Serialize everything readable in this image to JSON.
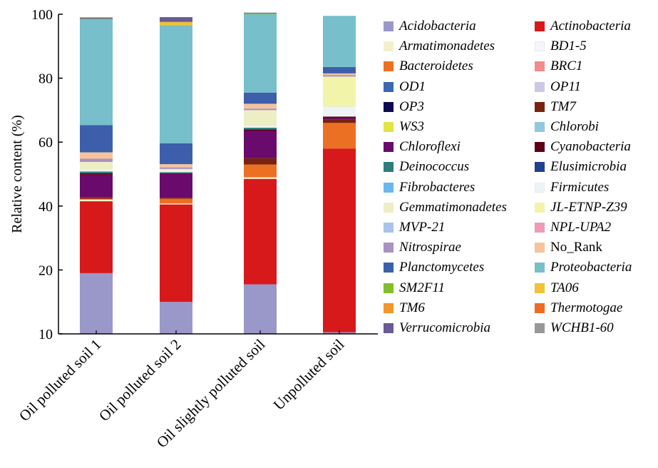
{
  "chart_data": {
    "type": "bar",
    "stacked": true,
    "ylabel": "Relative content (%)",
    "xlabel": "",
    "yticks": [
      "10",
      "20",
      "40",
      "60",
      "80",
      "100"
    ],
    "ylim": [
      0,
      100
    ],
    "grid": false,
    "legend_position": "right",
    "categories": [
      "Oil polluted soil 1",
      "Oil polluted soil 2",
      "Oil slightly polluted soil",
      "Unpolluted soil"
    ],
    "series": [
      {
        "name": "Acidobacteria",
        "color": "#9a98c9",
        "values": [
          19,
          10,
          15.5,
          0.5
        ]
      },
      {
        "name": "Actinobacteria",
        "color": "#d7191c",
        "values": [
          22.5,
          30.5,
          33,
          57.5
        ]
      },
      {
        "name": "Armatimonadetes",
        "color": "#f3f1c9",
        "values": [
          0.5,
          0.3,
          0.5,
          0
        ]
      },
      {
        "name": "BD1-5",
        "color": "#f4f6fa",
        "values": [
          0,
          0,
          0,
          0
        ]
      },
      {
        "name": "Bacteroidetes",
        "color": "#ec7024",
        "values": [
          0.3,
          1.5,
          4,
          8
        ]
      },
      {
        "name": "BRC1",
        "color": "#f08c8c",
        "values": [
          0,
          0,
          0,
          0
        ]
      },
      {
        "name": "OD1",
        "color": "#3b67b4",
        "values": [
          0,
          0,
          0,
          0
        ]
      },
      {
        "name": "OP11",
        "color": "#cfc8e4",
        "values": [
          0,
          0,
          0,
          0
        ]
      },
      {
        "name": "OP3",
        "color": "#0c0a52",
        "values": [
          0,
          0,
          0,
          0
        ]
      },
      {
        "name": "TM7",
        "color": "#7a2210",
        "values": [
          0.5,
          0.3,
          2,
          1
        ]
      },
      {
        "name": "WS3",
        "color": "#e2e344",
        "values": [
          0,
          0,
          0,
          0
        ]
      },
      {
        "name": "Chlorobi",
        "color": "#8fc8df",
        "values": [
          0,
          0,
          0,
          0
        ]
      },
      {
        "name": "Chloroflexi",
        "color": "#6a0a6c",
        "values": [
          7,
          7.5,
          8.5,
          0.5
        ]
      },
      {
        "name": "Cyanobacteria",
        "color": "#5c0016",
        "values": [
          0.5,
          0.2,
          0.5,
          0.5
        ]
      },
      {
        "name": "Deinococcus",
        "color": "#2d7d7d",
        "values": [
          0.5,
          0.3,
          0.5,
          0
        ]
      },
      {
        "name": "Elusimicrobia",
        "color": "#1f3f8f",
        "values": [
          0,
          0,
          0,
          0
        ]
      },
      {
        "name": "Fibrobacteres",
        "color": "#6ab8ee",
        "values": [
          0,
          0,
          0,
          0
        ]
      },
      {
        "name": "Firmicutes",
        "color": "#eef4f6",
        "values": [
          0.5,
          0.5,
          0.5,
          3
        ]
      },
      {
        "name": "Gemmatimonadetes",
        "color": "#eeeec4",
        "values": [
          2.5,
          0.5,
          5,
          0.5
        ]
      },
      {
        "name": "JL-ETNP-Z39",
        "color": "#f2f4aa",
        "values": [
          0,
          0,
          0,
          9
        ]
      },
      {
        "name": "MVP-21",
        "color": "#a9c3ea",
        "values": [
          0,
          0,
          0,
          0
        ]
      },
      {
        "name": "NPL-UPA2",
        "color": "#ee9ab8",
        "values": [
          0,
          0,
          0,
          0
        ]
      },
      {
        "name": "Nitrospirae",
        "color": "#a992c2",
        "values": [
          1,
          0.5,
          0.5,
          0.5
        ]
      },
      {
        "name": "No_Rank",
        "color": "#f6c39c",
        "values": [
          2,
          1,
          1.5,
          0.5
        ]
      },
      {
        "name": "Planctomycetes",
        "color": "#3d5fab",
        "values": [
          8.5,
          6.5,
          3.5,
          2
        ]
      },
      {
        "name": "Proteobacteria",
        "color": "#76bfcb",
        "values": [
          33,
          37,
          24.5,
          16
        ]
      },
      {
        "name": "SM2F11",
        "color": "#83bd29",
        "values": [
          0.3,
          0,
          0.3,
          0
        ]
      },
      {
        "name": "TA06",
        "color": "#f1c232",
        "values": [
          0,
          1,
          0,
          0
        ]
      },
      {
        "name": "TM6",
        "color": "#f29729",
        "values": [
          0,
          0,
          0,
          0
        ]
      },
      {
        "name": "Thermotogae",
        "color": "#ef6c23",
        "values": [
          0,
          0,
          0,
          0
        ]
      },
      {
        "name": "Verrucomicrobia",
        "color": "#6a5a96",
        "values": [
          0.4,
          1.5,
          0.2,
          0
        ]
      },
      {
        "name": "WCHB1-60",
        "color": "#989898",
        "values": [
          0,
          0,
          0,
          0
        ]
      }
    ]
  }
}
